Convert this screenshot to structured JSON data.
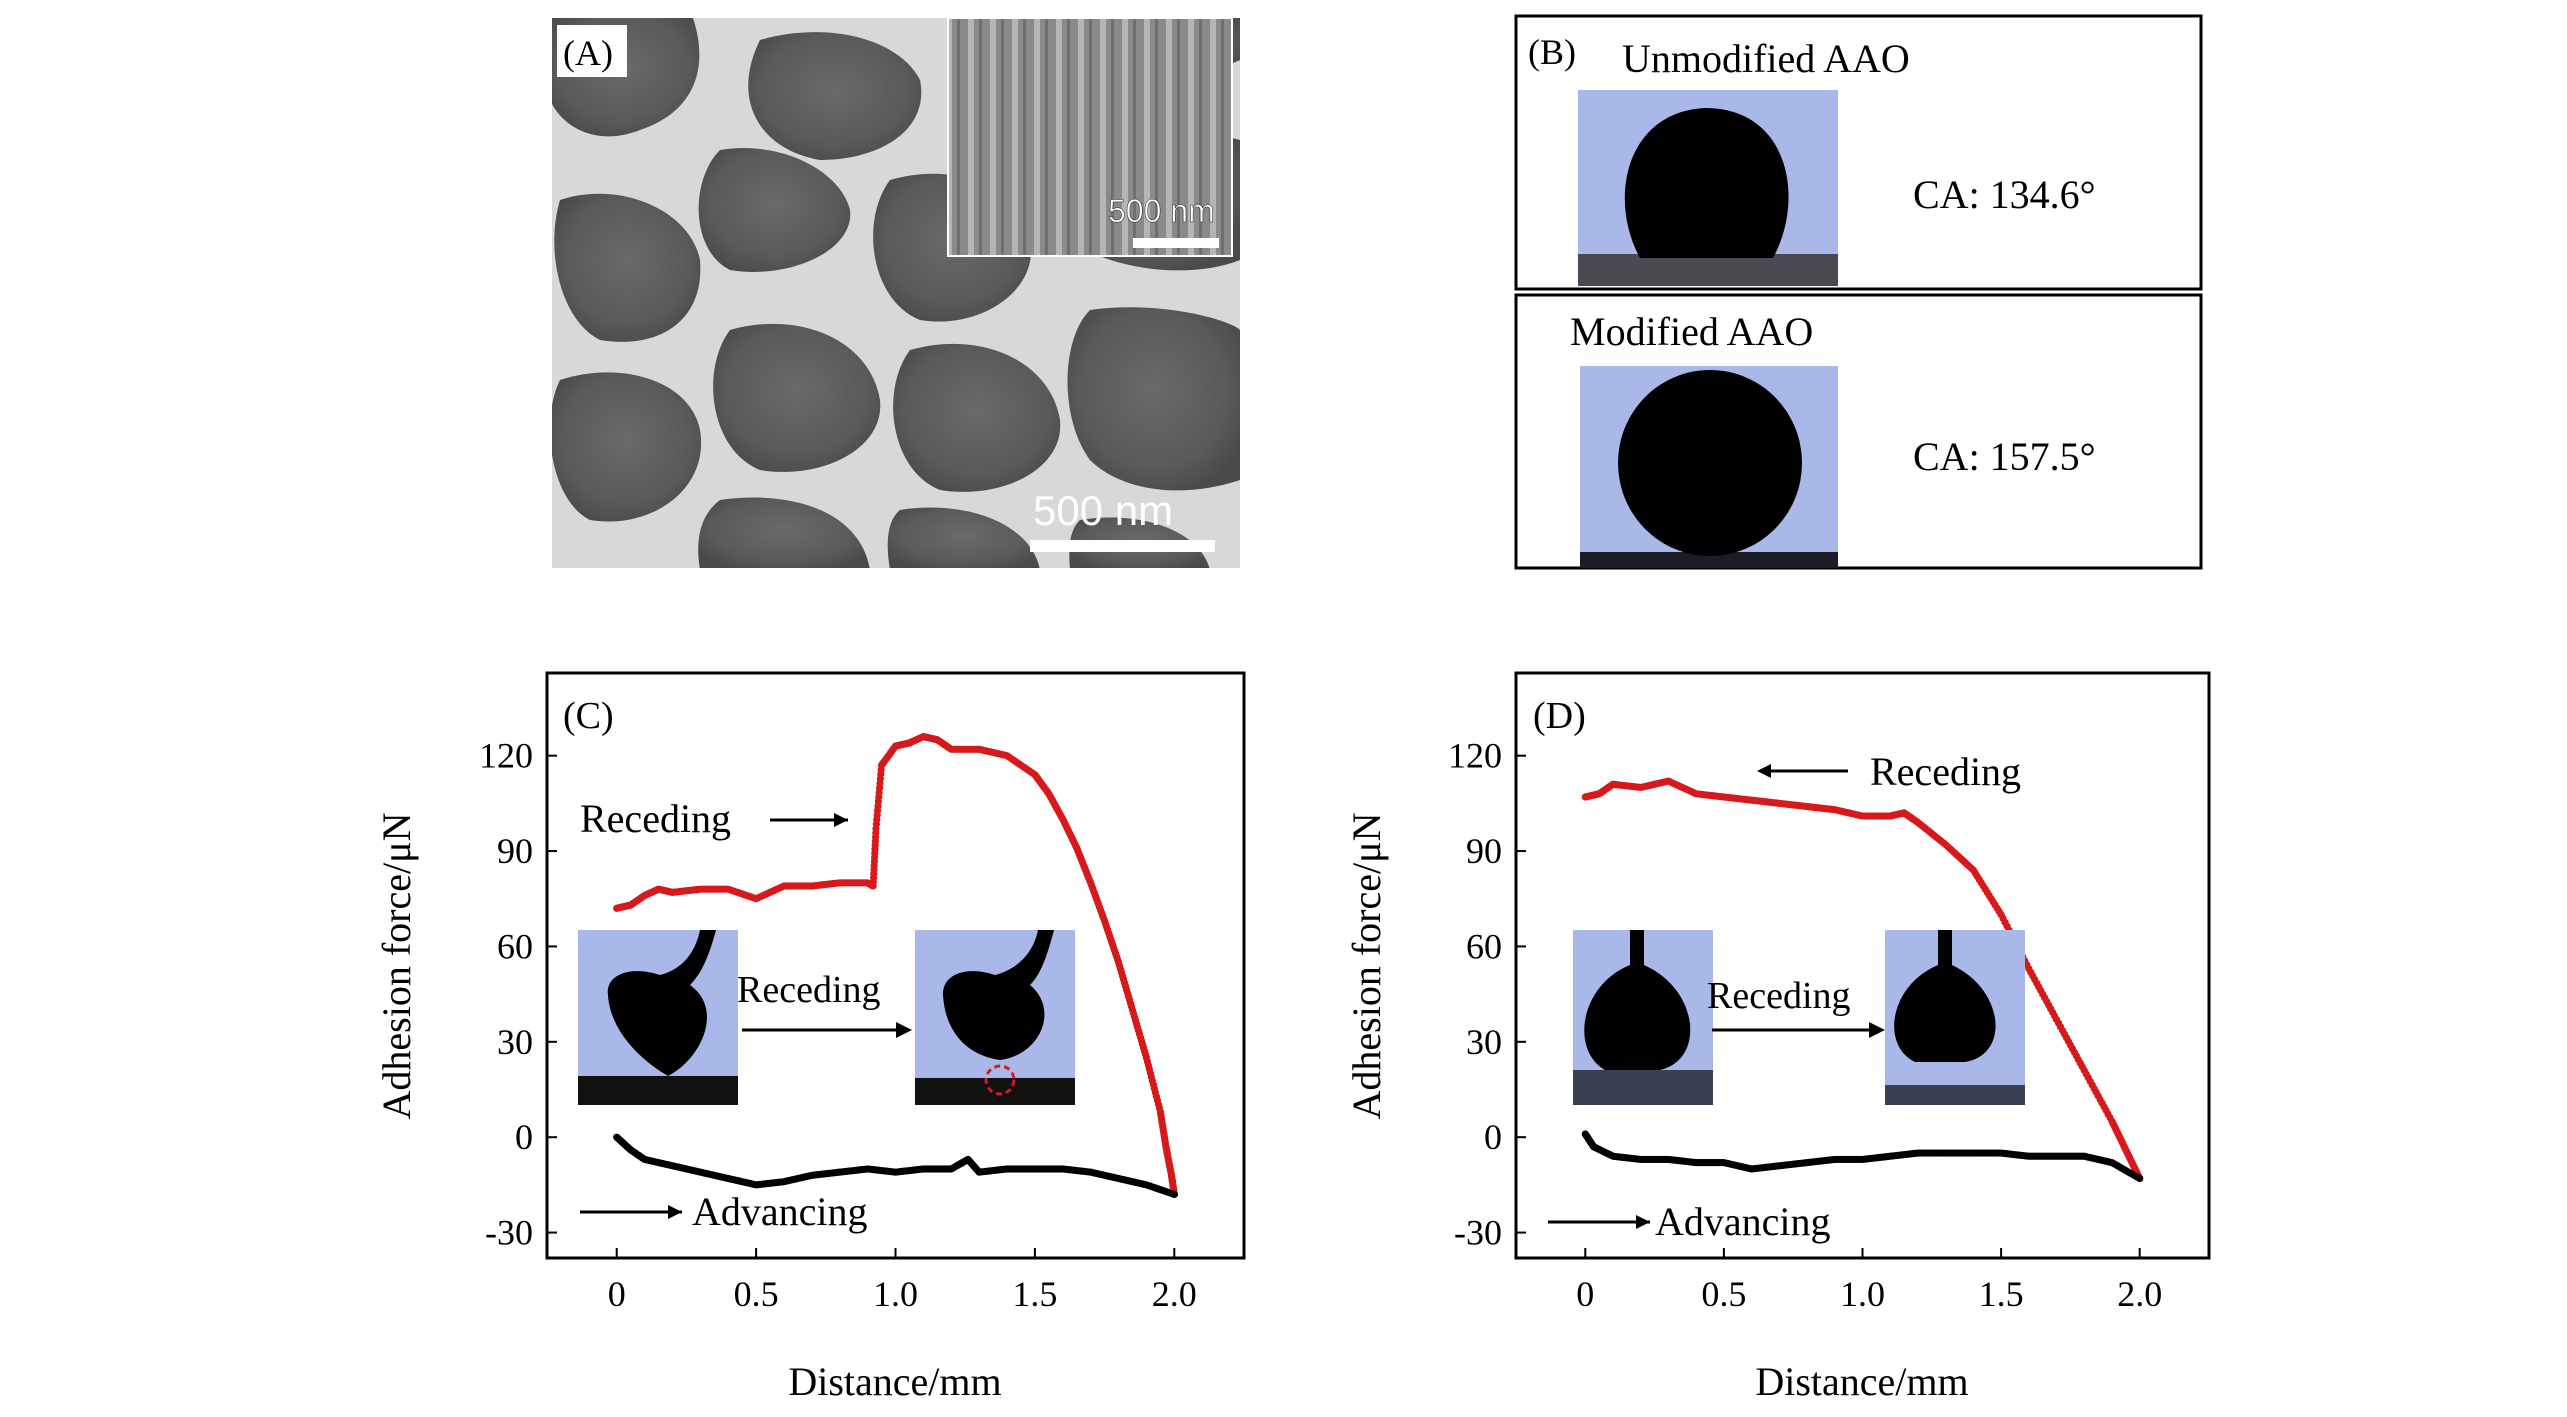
{
  "panelA": {
    "label": "(A)",
    "inset_scale": "500 nm",
    "main_scale": "500 nm"
  },
  "panelB": {
    "label": "(B)",
    "top_title": "Unmodified AAO",
    "top_ca": "CA: 134.6°",
    "bottom_title": "Modified AAO",
    "bottom_ca": "CA: 157.5°"
  },
  "panelC": {
    "label": "(C)",
    "ylabel": "Adhesion force/μN",
    "xlabel": "Distance/mm",
    "receding_label": "Receding",
    "advancing_label": "Advancing",
    "inset_label": "Receding"
  },
  "panelD": {
    "label": "(D)",
    "ylabel": "Adhesion force/μN",
    "xlabel": "Distance/mm",
    "receding_label": "Receding",
    "advancing_label": "Advancing",
    "inset_label": "Receding"
  },
  "chart_data": [
    {
      "type": "scatter",
      "panel": "C",
      "xlabel": "Distance/mm",
      "ylabel": "Adhesion force/μN",
      "xlim": [
        -0.25,
        2.25
      ],
      "ylim": [
        -38,
        146
      ],
      "xticks": [
        0,
        0.5,
        1.0,
        1.5,
        2.0
      ],
      "xtick_labels": [
        "0",
        "0.5",
        "1.0",
        "1.5",
        "2.0"
      ],
      "yticks": [
        -30,
        0,
        30,
        60,
        90,
        120
      ],
      "series": [
        {
          "name": "Receding",
          "color": "#d7191c",
          "x": [
            0.0,
            0.05,
            0.1,
            0.15,
            0.2,
            0.3,
            0.4,
            0.5,
            0.6,
            0.7,
            0.8,
            0.9,
            0.92,
            0.93,
            0.95,
            1.0,
            1.05,
            1.1,
            1.15,
            1.2,
            1.3,
            1.4,
            1.5,
            1.55,
            1.6,
            1.65,
            1.7,
            1.75,
            1.8,
            1.85,
            1.9,
            1.95,
            1.97,
            1.99,
            2.0
          ],
          "y": [
            72,
            73,
            76,
            78,
            77,
            78,
            78,
            75,
            79,
            79,
            80,
            80,
            79,
            97,
            117,
            123,
            124,
            126,
            125,
            122,
            122,
            120,
            114,
            108,
            100,
            91,
            80,
            68,
            55,
            40,
            25,
            8,
            -3,
            -12,
            -18
          ]
        },
        {
          "name": "Advancing",
          "color": "#000000",
          "x": [
            0.0,
            0.05,
            0.1,
            0.2,
            0.3,
            0.4,
            0.5,
            0.6,
            0.7,
            0.8,
            0.9,
            1.0,
            1.1,
            1.2,
            1.26,
            1.3,
            1.4,
            1.5,
            1.6,
            1.7,
            1.8,
            1.9,
            2.0
          ],
          "y": [
            0,
            -4,
            -7,
            -9,
            -11,
            -13,
            -15,
            -14,
            -12,
            -11,
            -10,
            -11,
            -10,
            -10,
            -7,
            -11,
            -10,
            -10,
            -10,
            -11,
            -13,
            -15,
            -18
          ]
        }
      ]
    },
    {
      "type": "scatter",
      "panel": "D",
      "xlabel": "Distance/mm",
      "ylabel": "Adhesion force/μN",
      "xlim": [
        -0.25,
        2.25
      ],
      "ylim": [
        -38,
        146
      ],
      "xticks": [
        0,
        0.5,
        1.0,
        1.5,
        2.0
      ],
      "xtick_labels": [
        "0",
        "0.5",
        "1.0",
        "1.5",
        "2.0"
      ],
      "yticks": [
        -30,
        0,
        30,
        60,
        90,
        120
      ],
      "series": [
        {
          "name": "Receding",
          "color": "#d7191c",
          "x": [
            0.0,
            0.05,
            0.1,
            0.2,
            0.3,
            0.4,
            0.5,
            0.6,
            0.7,
            0.8,
            0.9,
            1.0,
            1.1,
            1.15,
            1.2,
            1.3,
            1.4,
            1.5,
            1.6,
            1.7,
            1.8,
            1.9,
            1.95,
            2.0
          ],
          "y": [
            107,
            108,
            111,
            110,
            112,
            108,
            107,
            106,
            105,
            104,
            103,
            101,
            101,
            102,
            99,
            92,
            84,
            70,
            53,
            37,
            21,
            5,
            -4,
            -13
          ]
        },
        {
          "name": "Advancing",
          "color": "#000000",
          "x": [
            0.0,
            0.03,
            0.1,
            0.2,
            0.3,
            0.4,
            0.5,
            0.6,
            0.7,
            0.8,
            0.9,
            1.0,
            1.1,
            1.2,
            1.3,
            1.4,
            1.5,
            1.6,
            1.7,
            1.8,
            1.9,
            2.0
          ],
          "y": [
            1,
            -3,
            -6,
            -7,
            -7,
            -8,
            -8,
            -10,
            -9,
            -8,
            -7,
            -7,
            -6,
            -5,
            -5,
            -5,
            -5,
            -6,
            -6,
            -6,
            -8,
            -13
          ]
        }
      ]
    }
  ]
}
